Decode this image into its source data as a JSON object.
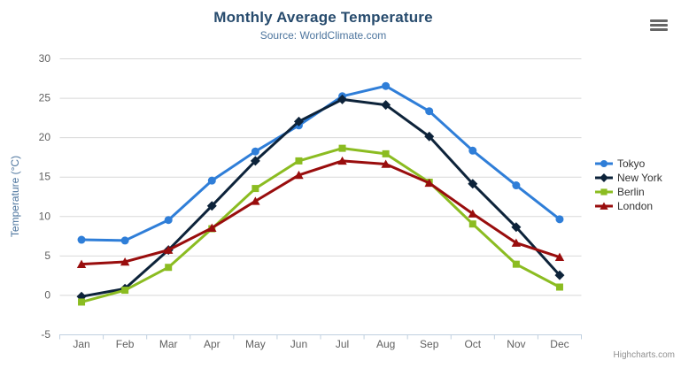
{
  "chart": {
    "title": "Monthly Average Temperature",
    "subtitle": "Source: WorldClimate.com",
    "credit": "Highcharts.com",
    "export_menu_icon": "hamburger-menu-icon"
  },
  "chart_data": {
    "type": "line",
    "title": "Monthly Average Temperature",
    "subtitle": "Source: WorldClimate.com",
    "categories": [
      "Jan",
      "Feb",
      "Mar",
      "Apr",
      "May",
      "Jun",
      "Jul",
      "Aug",
      "Sep",
      "Oct",
      "Nov",
      "Dec"
    ],
    "series": [
      {
        "name": "Tokyo",
        "color": "#2f7ed8",
        "marker": "circle",
        "values": [
          7.0,
          6.9,
          9.5,
          14.5,
          18.2,
          21.5,
          25.2,
          26.5,
          23.3,
          18.3,
          13.9,
          9.6
        ]
      },
      {
        "name": "New York",
        "color": "#0d233a",
        "marker": "diamond",
        "values": [
          -0.2,
          0.8,
          5.7,
          11.3,
          17.0,
          22.0,
          24.8,
          24.1,
          20.1,
          14.1,
          8.6,
          2.5
        ]
      },
      {
        "name": "Berlin",
        "color": "#8bbc21",
        "marker": "square",
        "values": [
          -0.9,
          0.6,
          3.5,
          8.4,
          13.5,
          17.0,
          18.6,
          17.9,
          14.3,
          9.0,
          3.9,
          1.0
        ]
      },
      {
        "name": "London",
        "color": "#990d0d",
        "marker": "triangle",
        "values": [
          3.9,
          4.2,
          5.7,
          8.5,
          11.9,
          15.2,
          17.0,
          16.6,
          14.2,
          10.3,
          6.6,
          4.8
        ]
      }
    ],
    "xlabel": "",
    "ylabel": "Temperature (°C)",
    "ylim": [
      -5,
      30
    ],
    "yticks": [
      -5,
      0,
      5,
      10,
      15,
      20,
      25,
      30
    ],
    "grid": true,
    "legend_position": "right",
    "colors": {
      "grid": "#d8d8d8",
      "axis_line": "#c0d0e0",
      "tick_label": "#606060",
      "axis_title": "#4d759e",
      "title": "#274b6d",
      "subtitle": "#4d759e",
      "legend_text": "#333333",
      "credit": "#909090"
    }
  }
}
